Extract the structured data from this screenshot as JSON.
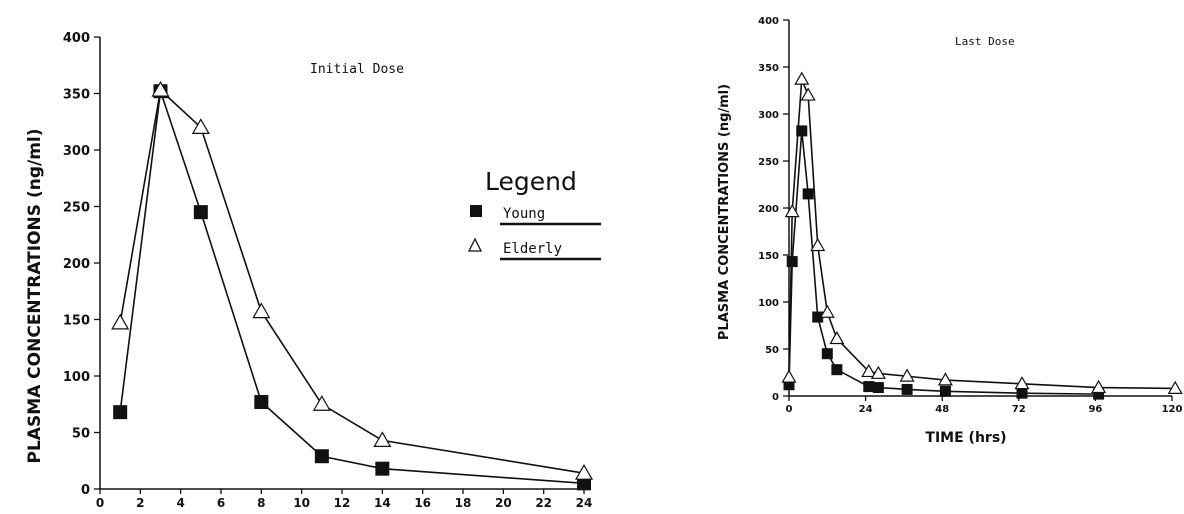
{
  "chart_data": [
    {
      "type": "line",
      "title": "Initial Dose",
      "xlabel": "",
      "ylabel": "PLASMA CONCENTRATIONS (ng/ml)",
      "xlim": [
        0,
        24
      ],
      "ylim": [
        0,
        400
      ],
      "x_ticks": [
        0,
        2,
        4,
        6,
        8,
        10,
        12,
        14,
        16,
        18,
        20,
        22,
        24
      ],
      "y_ticks": [
        0,
        50,
        100,
        150,
        200,
        250,
        300,
        350,
        400
      ],
      "grid": false,
      "legend": {
        "title": "Legend",
        "placement": "right",
        "entries": [
          "Young",
          "Elderly"
        ]
      },
      "series": [
        {
          "name": "Young",
          "marker": "filled-square",
          "x": [
            1,
            3,
            5,
            8,
            11,
            14,
            24
          ],
          "y": [
            68,
            352,
            245,
            77,
            29,
            18,
            5
          ]
        },
        {
          "name": "Elderly",
          "marker": "open-triangle",
          "x": [
            1,
            3,
            5,
            8,
            11,
            14,
            24
          ],
          "y": [
            147,
            353,
            320,
            157,
            75,
            43,
            14
          ]
        }
      ]
    },
    {
      "type": "line",
      "title": "Last Dose",
      "xlabel": "TIME (hrs)",
      "ylabel": "PLASMA CONCENTRATIONS (ng/ml)",
      "xlim": [
        0,
        120
      ],
      "ylim": [
        0,
        400
      ],
      "x_ticks": [
        0,
        24,
        48,
        72,
        96,
        120
      ],
      "y_ticks": [
        0,
        50,
        100,
        150,
        200,
        250,
        300,
        350,
        400
      ],
      "grid": false,
      "series": [
        {
          "name": "Young",
          "marker": "filled-square",
          "x": [
            0,
            1,
            4,
            6,
            9,
            12,
            15,
            25,
            28,
            37,
            49,
            73,
            97
          ],
          "y": [
            12,
            143,
            282,
            215,
            84,
            45,
            28,
            10,
            9,
            7,
            5,
            3,
            2
          ]
        },
        {
          "name": "Elderly",
          "marker": "open-triangle",
          "x": [
            0,
            1,
            4,
            6,
            9,
            12,
            15,
            25,
            28,
            37,
            49,
            73,
            97,
            121
          ],
          "y": [
            20,
            196,
            337,
            320,
            160,
            89,
            61,
            26,
            24,
            21,
            17,
            13,
            9,
            8
          ]
        }
      ]
    }
  ]
}
